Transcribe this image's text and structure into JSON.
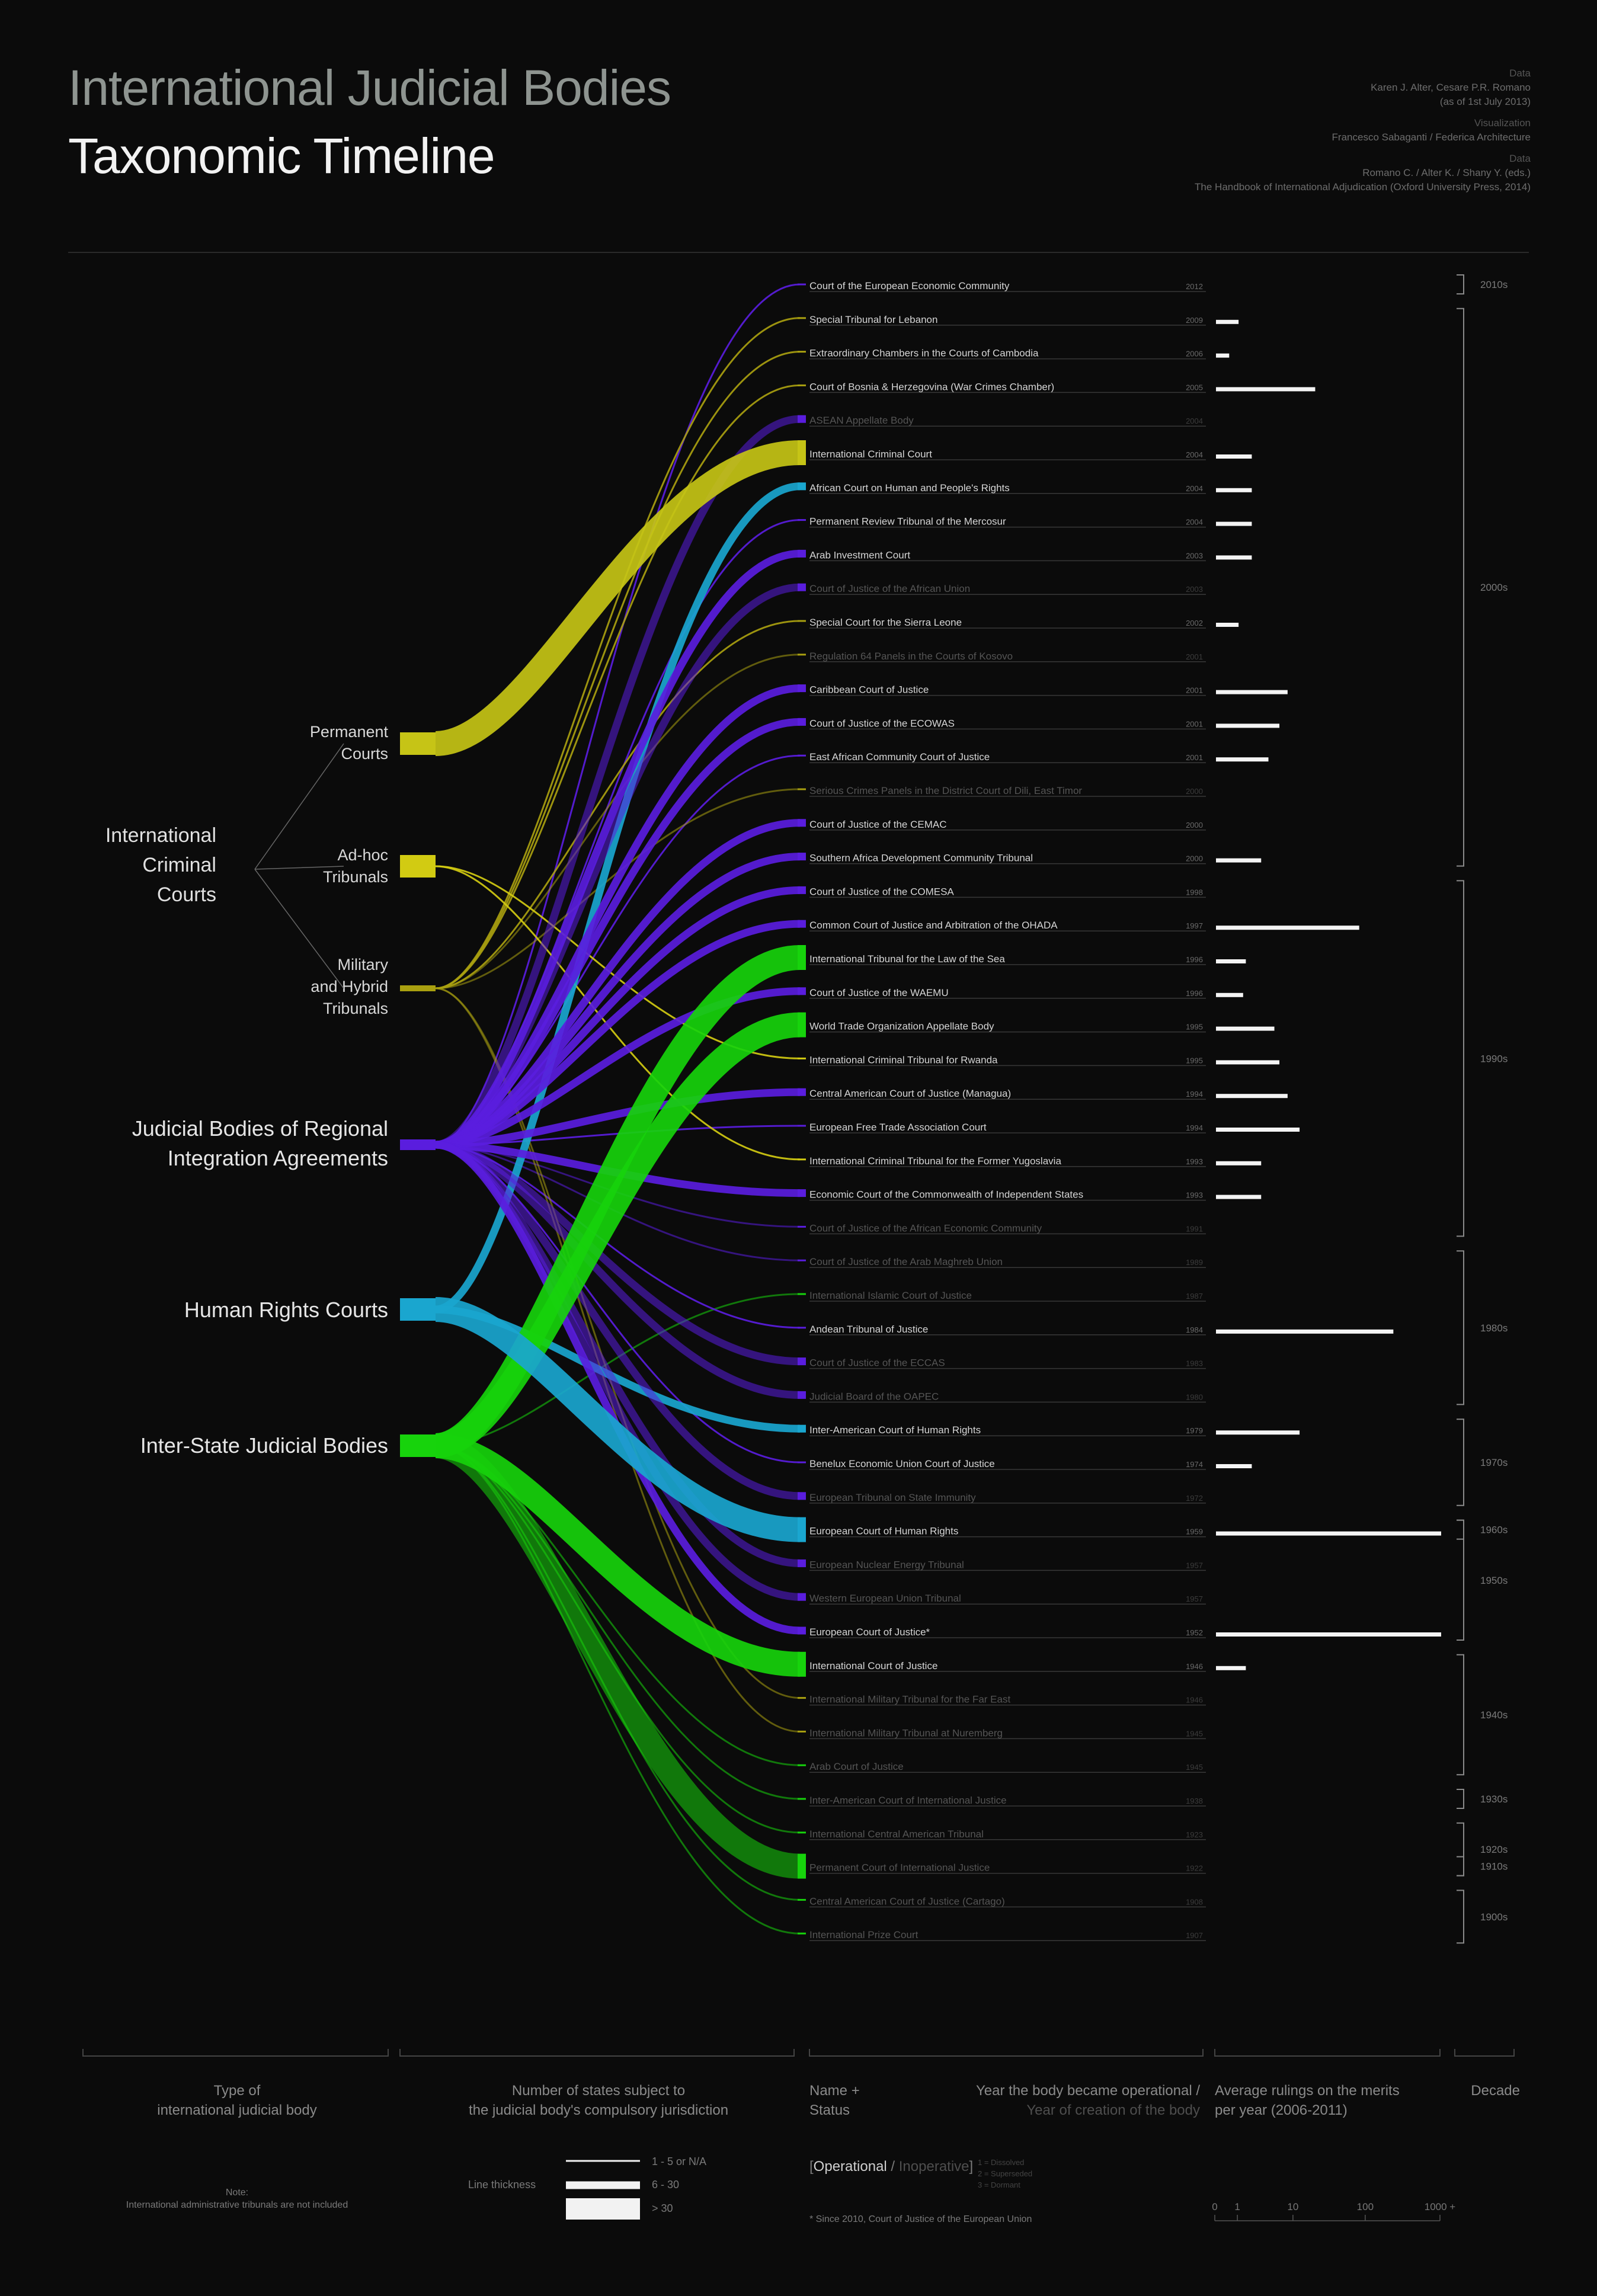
{
  "header": {
    "title": "International Judicial Bodies",
    "subtitle": "Taxonomic Timeline",
    "credits": [
      {
        "caption": "Data",
        "lines": [
          "Karen J. Alter, Cesare P.R. Romano",
          "(as of 1st July 2013)"
        ]
      },
      {
        "caption": "Visualization",
        "lines": [
          "Francesco Sabaganti / Federica Architecture"
        ]
      },
      {
        "caption": "Data",
        "lines": [
          "Romano C. / Alter K. / Shany Y. (eds.)",
          "The Handbook of International Adjudication (Oxford University Press, 2014)"
        ]
      }
    ]
  },
  "categories": [
    {
      "key": "icc",
      "label_lines": [
        "International",
        "Criminal",
        "Courts"
      ]
    },
    {
      "key": "regional",
      "label_lines": [
        "Judicial Bodies of Regional",
        "Integration Agreements"
      ]
    },
    {
      "key": "hr",
      "label_lines": [
        "Human Rights Courts"
      ]
    },
    {
      "key": "interstate",
      "label_lines": [
        "Inter-State Judicial Bodies"
      ]
    }
  ],
  "subcategories": [
    {
      "key": "perm",
      "label_lines": [
        "Permanent",
        "Courts"
      ]
    },
    {
      "key": "adhoc",
      "label_lines": [
        "Ad-hoc",
        "Tribunals"
      ]
    },
    {
      "key": "mil",
      "label_lines": [
        "Military",
        "and Hybrid",
        "Tribunals"
      ]
    }
  ],
  "colors": {
    "background": "#0b0b0b",
    "perm": "#c6c416",
    "adhoc": "#d2cb12",
    "mil": "#a9a010",
    "regional": "#5a1dde",
    "hr": "#1aa6cf",
    "interstate": "#17d30c",
    "text_operational": "#d6d6d6",
    "text_inoperative": "#555555",
    "decade": "#7a7a7a"
  },
  "chart_data": {
    "type": "alluvial timeline",
    "bodies": [
      {
        "name": "Court of the European Economic Community",
        "year": "2012",
        "cat": "regional",
        "op": true,
        "states": 1,
        "rulings": null
      },
      {
        "name": "Special Tribunal for Lebanon",
        "year": "2009",
        "cat": "mil",
        "op": true,
        "states": 1,
        "rulings": 1
      },
      {
        "name": "Extraordinary Chambers in the Courts of Cambodia",
        "year": "2006",
        "cat": "mil",
        "op": true,
        "states": 1,
        "rulings": 0.5
      },
      {
        "name": "Court of Bosnia & Herzegovina (War Crimes Chamber)",
        "year": "2005",
        "cat": "mil",
        "op": true,
        "states": 1,
        "rulings": 20
      },
      {
        "name": "ASEAN Appellate Body",
        "year": "2004",
        "cat": "regional",
        "op": false,
        "states": 10,
        "rulings": null
      },
      {
        "name": "International Criminal Court",
        "year": "2004",
        "cat": "perm",
        "op": true,
        "states": 122,
        "rulings": 2
      },
      {
        "name": "African Court on Human and People's Rights",
        "year": "2004",
        "cat": "hr",
        "op": true,
        "states": 26,
        "rulings": 2
      },
      {
        "name": "Permanent Review Tribunal of the Mercosur",
        "year": "2004",
        "cat": "regional",
        "op": true,
        "states": 5,
        "rulings": 2
      },
      {
        "name": "Arab Investment Court",
        "year": "2003",
        "cat": "regional",
        "op": true,
        "states": 20,
        "rulings": 2
      },
      {
        "name": "Court of Justice of the African Union",
        "year": "2003",
        "cat": "regional",
        "op": false,
        "states": 16,
        "rulings": null
      },
      {
        "name": "Special Court for the Sierra Leone",
        "year": "2002",
        "cat": "mil",
        "op": true,
        "states": 1,
        "rulings": 1
      },
      {
        "name": "Regulation 64 Panels in the Courts of Kosovo",
        "year": "2001",
        "cat": "mil",
        "op": false,
        "states": 1,
        "rulings": null
      },
      {
        "name": "Caribbean Court of Justice",
        "year": "2001",
        "cat": "regional",
        "op": true,
        "states": 12,
        "rulings": 8
      },
      {
        "name": "Court of Justice of the ECOWAS",
        "year": "2001",
        "cat": "regional",
        "op": true,
        "states": 15,
        "rulings": 6
      },
      {
        "name": "East African Community Court of Justice",
        "year": "2001",
        "cat": "regional",
        "op": true,
        "states": 5,
        "rulings": 4
      },
      {
        "name": "Serious Crimes Panels in the District Court of Dili, East Timor",
        "year": "2000",
        "cat": "mil",
        "op": false,
        "states": 1,
        "rulings": null
      },
      {
        "name": "Court of Justice of the CEMAC",
        "year": "2000",
        "cat": "regional",
        "op": true,
        "states": 6,
        "rulings": null
      },
      {
        "name": "Southern Africa Development Community Tribunal",
        "year": "2000",
        "cat": "regional",
        "op": true,
        "states": 15,
        "rulings": 3
      },
      {
        "name": "Court of Justice of the COMESA",
        "year": "1998",
        "cat": "regional",
        "op": true,
        "states": 19,
        "rulings": null
      },
      {
        "name": "Common Court of Justice and Arbitration of the OHADA",
        "year": "1997",
        "cat": "regional",
        "op": true,
        "states": 17,
        "rulings": 80
      },
      {
        "name": "International Tribunal for the Law of the Sea",
        "year": "1996",
        "cat": "interstate",
        "op": true,
        "states": 165,
        "rulings": 1.5
      },
      {
        "name": "Court of Justice of the WAEMU",
        "year": "1996",
        "cat": "regional",
        "op": true,
        "states": 8,
        "rulings": 1.3
      },
      {
        "name": "World Trade Organization Appellate Body",
        "year": "1995",
        "cat": "interstate",
        "op": true,
        "states": 159,
        "rulings": 5
      },
      {
        "name": "International Criminal Tribunal for Rwanda",
        "year": "1995",
        "cat": "adhoc",
        "op": true,
        "states": 1,
        "rulings": 6
      },
      {
        "name": "Central American Court of Justice (Managua)",
        "year": "1994",
        "cat": "regional",
        "op": true,
        "states": 6,
        "rulings": 8
      },
      {
        "name": "European Free Trade Association Court",
        "year": "1994",
        "cat": "regional",
        "op": true,
        "states": 3,
        "rulings": 12
      },
      {
        "name": "International Criminal Tribunal for the Former Yugoslavia",
        "year": "1993",
        "cat": "adhoc",
        "op": true,
        "states": 1,
        "rulings": 3
      },
      {
        "name": "Economic Court of the Commonwealth of Independent States",
        "year": "1993",
        "cat": "regional",
        "op": true,
        "states": 12,
        "rulings": 3
      },
      {
        "name": "Court of Justice of the African Economic Community",
        "year": "1991",
        "cat": "regional",
        "op": false,
        "states": 1,
        "rulings": null
      },
      {
        "name": "Court of Justice of the Arab Maghreb Union",
        "year": "1989",
        "cat": "regional",
        "op": false,
        "states": 5,
        "rulings": null
      },
      {
        "name": "International Islamic Court of Justice",
        "year": "1987",
        "cat": "interstate",
        "op": false,
        "states": 1,
        "rulings": null
      },
      {
        "name": "Andean Tribunal of Justice",
        "year": "1984",
        "cat": "regional",
        "op": true,
        "states": 4,
        "rulings": 230
      },
      {
        "name": "Court of Justice of the ECCAS",
        "year": "1983",
        "cat": "regional",
        "op": false,
        "states": 10,
        "rulings": null
      },
      {
        "name": "Judicial Board of the OAPEC",
        "year": "1980",
        "cat": "regional",
        "op": false,
        "states": 7,
        "rulings": null
      },
      {
        "name": "Inter-American Court of Human Rights",
        "year": "1979",
        "cat": "hr",
        "op": true,
        "states": 22,
        "rulings": 12
      },
      {
        "name": "Benelux Economic Union Court of Justice",
        "year": "1974",
        "cat": "regional",
        "op": true,
        "states": 3,
        "rulings": 2
      },
      {
        "name": "European Tribunal on State Immunity",
        "year": "1972",
        "cat": "regional",
        "op": false,
        "states": 8,
        "rulings": null
      },
      {
        "name": "European Court of Human Rights",
        "year": "1959",
        "cat": "hr",
        "op": true,
        "states": 47,
        "rulings": 1000
      },
      {
        "name": "European Nuclear Energy Tribunal",
        "year": "1957",
        "cat": "regional",
        "op": false,
        "states": 16,
        "rulings": null
      },
      {
        "name": "Western European Union Tribunal",
        "year": "1957",
        "cat": "regional",
        "op": false,
        "states": 8,
        "rulings": null
      },
      {
        "name": "European Court of Justice*",
        "year": "1952",
        "cat": "regional",
        "op": true,
        "states": 28,
        "rulings": 1000
      },
      {
        "name": "International Court of Justice",
        "year": "1946",
        "cat": "interstate",
        "op": true,
        "states": 67,
        "rulings": 1.5
      },
      {
        "name": "International Military Tribunal for the Far East",
        "year": "1946",
        "cat": "mil",
        "op": false,
        "states": 1,
        "rulings": null
      },
      {
        "name": "International Military Tribunal at Nuremberg",
        "year": "1945",
        "cat": "mil",
        "op": false,
        "states": 1,
        "rulings": null
      },
      {
        "name": "Arab Court of Justice",
        "year": "1945",
        "cat": "interstate",
        "op": false,
        "states": 1,
        "rulings": null
      },
      {
        "name": "Inter-American Court of International Justice",
        "year": "1938",
        "cat": "interstate",
        "op": false,
        "states": 1,
        "rulings": null
      },
      {
        "name": "International Central American Tribunal",
        "year": "1923",
        "cat": "interstate",
        "op": false,
        "states": 1,
        "rulings": null
      },
      {
        "name": "Permanent Court of International Justice",
        "year": "1922",
        "cat": "interstate",
        "op": false,
        "states": 40,
        "rulings": null
      },
      {
        "name": "Central American Court of Justice (Cartago)",
        "year": "1908",
        "cat": "interstate",
        "op": false,
        "states": 1,
        "rulings": null
      },
      {
        "name": "International Prize Court",
        "year": "1907",
        "cat": "interstate",
        "op": false,
        "states": 1,
        "rulings": null
      }
    ],
    "decades": [
      {
        "label": "2010s",
        "from": 0,
        "to": 0
      },
      {
        "label": "2000s",
        "from": 1,
        "to": 17
      },
      {
        "label": "1990s",
        "from": 18,
        "to": 28
      },
      {
        "label": "1980s",
        "from": 29,
        "to": 33
      },
      {
        "label": "1970s",
        "from": 34,
        "to": 36
      },
      {
        "label": "1960s",
        "from": 37,
        "to": 37
      },
      {
        "label": "1950s",
        "from": 37,
        "to": 40
      },
      {
        "label": "1940s",
        "from": 41,
        "to": 44
      },
      {
        "label": "1930s",
        "from": 45,
        "to": 45
      },
      {
        "label": "1920s",
        "from": 46,
        "to": 47
      },
      {
        "label": "1910s",
        "from": 47,
        "to": 47
      },
      {
        "label": "1900s",
        "from": 48,
        "to": 49
      }
    ],
    "axis_labels": {
      "type": "Type of\ninternational judicial body",
      "states": "Number of states subject to\nthe judicial body's compulsory jurisdiction",
      "name": "Name +\nStatus",
      "year_a": "Year the body became operational /",
      "year_b": "Year of creation of the body",
      "rulings": "Average rulings on the merits\nper year (2006-2011)",
      "decade": "Decade"
    },
    "rulings_scale_ticks": [
      "0",
      "1",
      "10",
      "100",
      "1000 +"
    ]
  },
  "legend": {
    "line_thickness_label": "Line thickness",
    "thickness_items": [
      "1 - 5 or N/A",
      "6 - 30",
      "> 30"
    ],
    "status_operational": "Operational",
    "status_inoperative": "Inoperative",
    "status_notes": [
      "1 = Dissolved",
      "2 = Superseded",
      "3 = Dormant"
    ],
    "footnote": "* Since 2010, Court of Justice of the European Union",
    "note_title": "Note:",
    "note_text": "International administrative tribunals are not included"
  }
}
